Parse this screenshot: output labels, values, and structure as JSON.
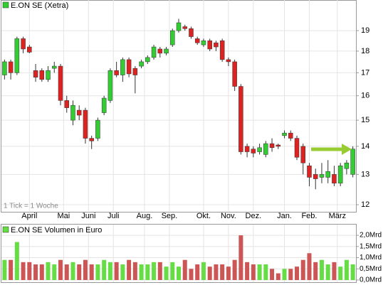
{
  "chart_data": [
    {
      "type": "candlestick",
      "title": "E.ON SE (Xetra)",
      "annotation": "1 Tick = 1 Woche",
      "log_scale": true,
      "grid": true,
      "up_color": "#33cc33",
      "down_color": "#dd2222",
      "ylim": [
        11.8,
        20.6
      ],
      "yticks": [
        12,
        13,
        14,
        15,
        16,
        17,
        18,
        19
      ],
      "categories": [
        null,
        null,
        null,
        null,
        null,
        null,
        null,
        null,
        null,
        null,
        null,
        null,
        null,
        null,
        null,
        null,
        null,
        null,
        null,
        null,
        null,
        null,
        null,
        null,
        null,
        null,
        null,
        null,
        null,
        null,
        null,
        null,
        null,
        null,
        null,
        null,
        null,
        null,
        null,
        null,
        null,
        null,
        null,
        null,
        null,
        null,
        null,
        null,
        null,
        null,
        null,
        null,
        null,
        null,
        null,
        null,
        null
      ],
      "xticks": [
        {
          "value": 4,
          "label": "April"
        },
        {
          "value": 9.5,
          "label": "Mai"
        },
        {
          "value": 13.5,
          "label": "Juni"
        },
        {
          "value": 17.5,
          "label": "Juli"
        },
        {
          "value": 22.5,
          "label": "Aug."
        },
        {
          "value": 26.5,
          "label": "Sep."
        },
        {
          "value": 32,
          "label": "Okt."
        },
        {
          "value": 36,
          "label": "Nov."
        },
        {
          "value": 40,
          "label": "Dez."
        },
        {
          "value": 45,
          "label": "Jan."
        },
        {
          "value": 49,
          "label": "Feb."
        },
        {
          "value": 53.5,
          "label": "März"
        }
      ],
      "open": [
        16.9,
        17.5,
        17.0,
        18.6,
        18.2,
        17.1,
        17.1,
        16.7,
        17.2,
        17.3,
        15.8,
        15.0,
        15.4,
        15.4,
        14.3,
        14.3,
        15.3,
        15.8,
        17.1,
        16.9,
        17.6,
        17.2,
        17.3,
        17.5,
        17.7,
        18.1,
        17.9,
        18.3,
        19.0,
        19.2,
        19.1,
        18.6,
        18.3,
        18.5,
        18.4,
        18.5,
        17.6,
        17.5,
        16.4,
        14.0,
        13.9,
        13.8,
        13.7,
        14.1,
        14.05,
        14.4,
        14.5,
        14.3,
        14.0,
        13.3,
        13.0,
        12.9,
        12.9,
        13.0,
        12.7,
        13.2,
        13.0
      ],
      "high": [
        17.6,
        17.6,
        18.7,
        18.7,
        18.3,
        17.4,
        17.2,
        17.3,
        17.5,
        17.4,
        16.0,
        15.8,
        15.6,
        15.5,
        14.4,
        15.1,
        16.0,
        17.2,
        17.5,
        17.7,
        17.7,
        17.3,
        17.6,
        17.8,
        18.3,
        18.2,
        18.2,
        19.1,
        19.6,
        19.3,
        19.2,
        18.7,
        18.6,
        18.6,
        18.5,
        18.6,
        17.7,
        17.6,
        16.5,
        14.1,
        14.0,
        14.1,
        14.2,
        14.3,
        14.1,
        14.6,
        14.6,
        14.4,
        14.1,
        13.4,
        13.2,
        13.4,
        13.5,
        13.3,
        13.4,
        13.5,
        14.0
      ],
      "low": [
        16.7,
        16.7,
        16.9,
        17.9,
        17.9,
        16.6,
        16.6,
        16.6,
        17.0,
        15.6,
        15.3,
        14.8,
        15.0,
        14.1,
        13.9,
        14.2,
        15.2,
        15.7,
        16.8,
        16.6,
        16.8,
        16.1,
        17.2,
        17.4,
        17.6,
        17.7,
        17.8,
        18.2,
        18.9,
        19.0,
        18.6,
        18.3,
        18.2,
        18.0,
        18.0,
        17.5,
        17.3,
        16.2,
        13.7,
        13.6,
        13.6,
        13.7,
        13.6,
        13.8,
        13.9,
        14.3,
        14.2,
        13.5,
        13.0,
        12.6,
        12.5,
        12.7,
        12.7,
        12.6,
        12.6,
        13.0,
        12.9
      ],
      "close": [
        17.5,
        17.0,
        18.6,
        18.1,
        17.95,
        16.8,
        16.7,
        17.1,
        17.3,
        15.8,
        15.5,
        15.6,
        15.2,
        14.3,
        14.2,
        15.0,
        15.9,
        17.1,
        16.9,
        17.6,
        16.95,
        16.9,
        17.5,
        17.7,
        18.2,
        17.9,
        18.1,
        19.0,
        19.4,
        19.1,
        18.7,
        18.4,
        18.5,
        18.1,
        18.2,
        17.6,
        17.5,
        16.4,
        13.8,
        13.8,
        13.75,
        13.95,
        14.1,
        13.95,
        14.0,
        14.5,
        14.3,
        13.6,
        13.4,
        12.9,
        12.85,
        13.0,
        13.1,
        12.7,
        13.3,
        13.4,
        13.9
      ]
    },
    {
      "type": "bar",
      "title": "E.ON SE Volumen in Euro",
      "up_color": "#66dd44",
      "down_color": "#cc5555",
      "ylim": [
        0,
        2.48
      ],
      "yticks": [
        {
          "value": 0,
          "label": "0,0Mrd"
        },
        {
          "value": 0.5,
          "label": "0,5Mrd"
        },
        {
          "value": 1.0,
          "label": "1,0Mrd"
        },
        {
          "value": 1.5,
          "label": "1,5Mrd"
        },
        {
          "value": 2.0,
          "label": "2,0Mrd"
        }
      ],
      "values": [
        0.9,
        0.9,
        1.7,
        0.8,
        0.8,
        0.7,
        0.7,
        0.8,
        0.7,
        0.9,
        0.7,
        0.8,
        0.7,
        0.9,
        0.7,
        0.7,
        0.9,
        0.8,
        0.8,
        0.7,
        0.9,
        0.8,
        0.7,
        0.7,
        0.8,
        0.8,
        0.6,
        0.8,
        0.6,
        0.9,
        0.5,
        0.7,
        0.8,
        0.6,
        0.7,
        0.7,
        0.6,
        0.9,
        2.0,
        0.8,
        0.7,
        0.7,
        0.7,
        0.5,
        0.3,
        0.5,
        0.5,
        0.6,
        0.9,
        1.2,
        0.8,
        0.9,
        0.7,
        0.8,
        0.6,
        0.9,
        0.7
      ]
    }
  ]
}
